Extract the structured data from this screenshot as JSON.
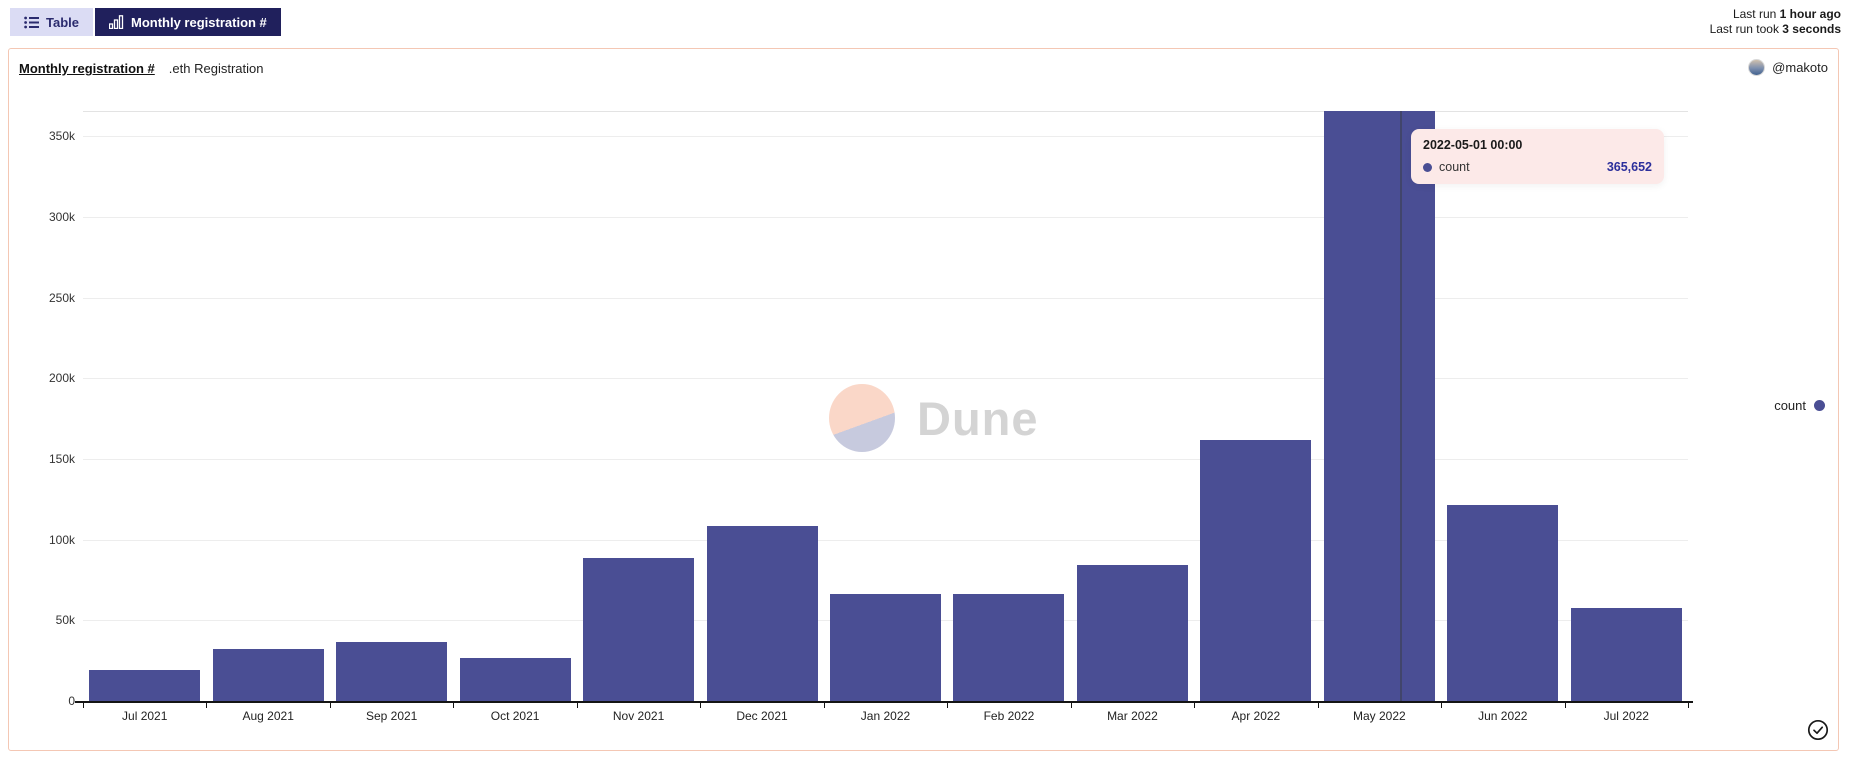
{
  "tabs": [
    {
      "label": "Table",
      "icon": "list-icon",
      "active": false
    },
    {
      "label": "Monthly registration #",
      "icon": "bar-chart-icon",
      "active": true
    }
  ],
  "status": {
    "last_run_prefix": "Last run ",
    "last_run_value": "1 hour ago",
    "last_run_took_prefix": "Last run took ",
    "last_run_took_value": "3 seconds"
  },
  "panel": {
    "title": "Monthly registration #",
    "subtitle": ".eth Registration",
    "author": "@makoto"
  },
  "watermark": {
    "text": "Dune"
  },
  "legend": {
    "label": "count"
  },
  "tooltip": {
    "title": "2022-05-01 00:00",
    "series": "count",
    "value": "365,652"
  },
  "chart_data": {
    "type": "bar",
    "title": "Monthly registration #",
    "xlabel": "",
    "ylabel": "",
    "categories": [
      "Jul 2021",
      "Aug 2021",
      "Sep 2021",
      "Oct 2021",
      "Nov 2021",
      "Dec 2021",
      "Jan 2022",
      "Feb 2022",
      "Mar 2022",
      "Apr 2022",
      "May 2022",
      "Jun 2022",
      "Jul 2022"
    ],
    "series": [
      {
        "name": "count",
        "values": [
          19000,
          32200,
          36600,
          26700,
          88600,
          108400,
          66300,
          66300,
          84300,
          161800,
          365652,
          121700,
          57700
        ]
      }
    ],
    "highlighted": {
      "category": "May 2022",
      "index": 10,
      "exact_value": 365652,
      "formatted": "365,652"
    },
    "ylim": [
      0,
      365652
    ],
    "yticks": [
      0,
      50000,
      100000,
      150000,
      200000,
      250000,
      300000,
      350000
    ],
    "ytick_labels": [
      "0",
      "50k",
      "100k",
      "150k",
      "200k",
      "250k",
      "300k",
      "350k"
    ],
    "grid": true,
    "legend_position": "right"
  },
  "colors": {
    "bar": "#4a4e94",
    "tab_active_bg": "#20205c",
    "tab_inactive_bg": "#dbdcf4",
    "tooltip_bg": "#fce9e8",
    "tooltip_value": "#2c2f9b",
    "panel_border": "#f4c7b4",
    "gridline": "#ededed",
    "watermark_peach": "#fad7c8",
    "watermark_lavender": "#c7cade"
  }
}
